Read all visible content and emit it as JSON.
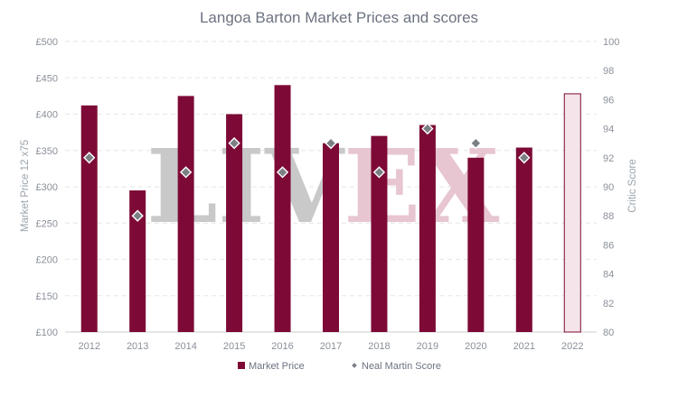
{
  "chart_data": {
    "type": "bar",
    "title": "Langoa Barton Market Prices and scores",
    "categories": [
      "2012",
      "2013",
      "2014",
      "2015",
      "2016",
      "2017",
      "2018",
      "2019",
      "2020",
      "2021",
      "2022"
    ],
    "series": [
      {
        "name": "Market Price",
        "type": "bar",
        "axis": "left",
        "values": [
          412,
          295,
          425,
          400,
          440,
          360,
          370,
          385,
          340,
          354,
          428
        ],
        "color": "#7d0a36",
        "projected_category": "2022",
        "projected_fill": "#f5e4ea"
      },
      {
        "name": "Neal Martin Score",
        "type": "scatter",
        "axis": "right",
        "values": [
          92,
          88,
          91,
          93,
          91,
          93,
          91,
          94,
          93,
          92,
          null
        ],
        "color": "#7b7f86"
      }
    ],
    "y_left": {
      "label": "Market Price 12 x75",
      "min": 100,
      "max": 500,
      "ticks": [
        100,
        150,
        200,
        250,
        300,
        350,
        400,
        450,
        500
      ],
      "tick_labels": [
        "£100",
        "£150",
        "£200",
        "£250",
        "£300",
        "£350",
        "£400",
        "£450",
        "£500"
      ]
    },
    "y_right": {
      "label": "Critic Score",
      "min": 80,
      "max": 100,
      "ticks": [
        80,
        82,
        84,
        86,
        88,
        90,
        92,
        94,
        96,
        98,
        100
      ]
    },
    "grid": true,
    "legend_position": "bottom",
    "watermark": {
      "part1": "LIV",
      "part2": "EX",
      "color1": "#c9c9c9",
      "color2": "#e7c6d1"
    }
  }
}
